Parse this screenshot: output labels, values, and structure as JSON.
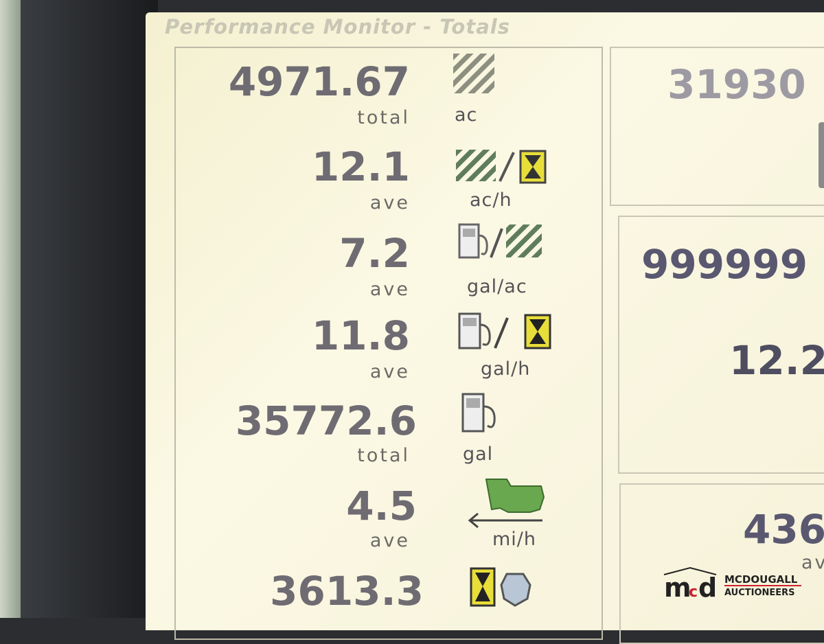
{
  "header": {
    "title": "Performance Monitor - Totals"
  },
  "rows": [
    {
      "value": "4971.67",
      "label": "total",
      "unit": "ac",
      "icon": "area-hatch-icon"
    },
    {
      "value": "12.1",
      "label": "ave",
      "unit": "ac/h",
      "icon": "area-per-hour-icon"
    },
    {
      "value": "7.2",
      "label": "ave",
      "unit": "gal/ac",
      "icon": "fuel-per-area-icon"
    },
    {
      "value": "11.8",
      "label": "ave",
      "unit": "gal/h",
      "icon": "fuel-per-hour-icon"
    },
    {
      "value": "35772.6",
      "label": "total",
      "unit": "gal",
      "icon": "fuel-pump-icon"
    },
    {
      "value": "4.5",
      "label": "ave",
      "unit": "mi/h",
      "icon": "machine-speed-icon"
    },
    {
      "value": "3613.3",
      "label": "",
      "unit": "",
      "icon": "engine-hours-icon"
    }
  ],
  "right_panels": [
    {
      "value": "31930"
    },
    {
      "value": "999999",
      "value2": "12.2"
    },
    {
      "value": "436",
      "label": "ave"
    }
  ],
  "watermark": {
    "line1": "MCDOUGALL",
    "line2": "AUCTIONEERS"
  },
  "colors": {
    "hatch_green": "#4f7a4a",
    "hourglass_yellow": "#e8de3a",
    "machine_green": "#6aa84f",
    "text": "#6f6b72"
  }
}
